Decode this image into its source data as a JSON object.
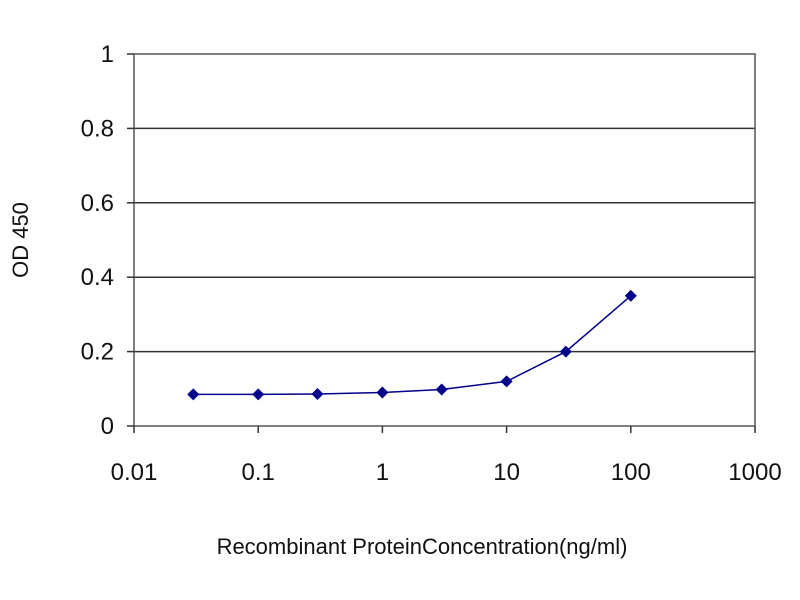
{
  "chart_data": {
    "type": "line",
    "title": "",
    "xlabel": "Recombinant ProteinConcentration(ng/ml)",
    "ylabel": "OD 450",
    "x_scale": "log",
    "xlim": [
      0.01,
      1000
    ],
    "ylim": [
      0,
      1
    ],
    "x_ticks": [
      0.01,
      0.1,
      1,
      10,
      100,
      1000
    ],
    "x_tick_labels": [
      "0.01",
      "0.1",
      "1",
      "10",
      "100",
      "1000"
    ],
    "y_ticks": [
      0,
      0.2,
      0.4,
      0.6,
      0.8,
      1
    ],
    "y_tick_labels": [
      "0",
      "0.2",
      "0.4",
      "0.6",
      "0.8",
      "1"
    ],
    "grid": "horizontal",
    "legend": "none",
    "series": [
      {
        "x": [
          0.03,
          0.1,
          0.3,
          1,
          3,
          10,
          30,
          100
        ],
        "y": [
          0.085,
          0.085,
          0.086,
          0.09,
          0.098,
          0.12,
          0.2,
          0.35
        ],
        "color": "#00008b"
      }
    ]
  }
}
